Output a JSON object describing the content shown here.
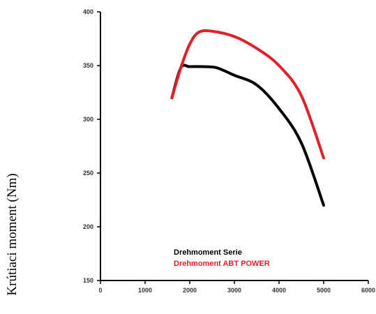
{
  "chart_data": {
    "type": "line",
    "ylabel": "Krútiaci moment (Nm)",
    "xlabel": "",
    "xlim": [
      0,
      6000
    ],
    "ylim": [
      150,
      400
    ],
    "x_ticks": [
      "0",
      "1000",
      "2000",
      "3000",
      "4000",
      "5000",
      "6000"
    ],
    "y_ticks": [
      "150",
      "200",
      "250",
      "300",
      "350",
      "400"
    ],
    "grid": false,
    "legend_position": "bottom-left",
    "series": [
      {
        "name": "Drehmoment Serie",
        "color": "#000000",
        "x": [
          1600,
          1800,
          2000,
          2300,
          2600,
          3000,
          3500,
          4000,
          4500,
          5000
        ],
        "y": [
          320,
          348,
          349,
          349,
          348,
          341,
          332,
          310,
          278,
          220
        ]
      },
      {
        "name": "Drehmoment ABT POWER",
        "color": "#e3202a",
        "x": [
          1600,
          1800,
          2000,
          2200,
          2500,
          3000,
          3500,
          4000,
          4500,
          5000
        ],
        "y": [
          320,
          348,
          370,
          381,
          382,
          377,
          366,
          350,
          322,
          264
        ]
      }
    ]
  }
}
